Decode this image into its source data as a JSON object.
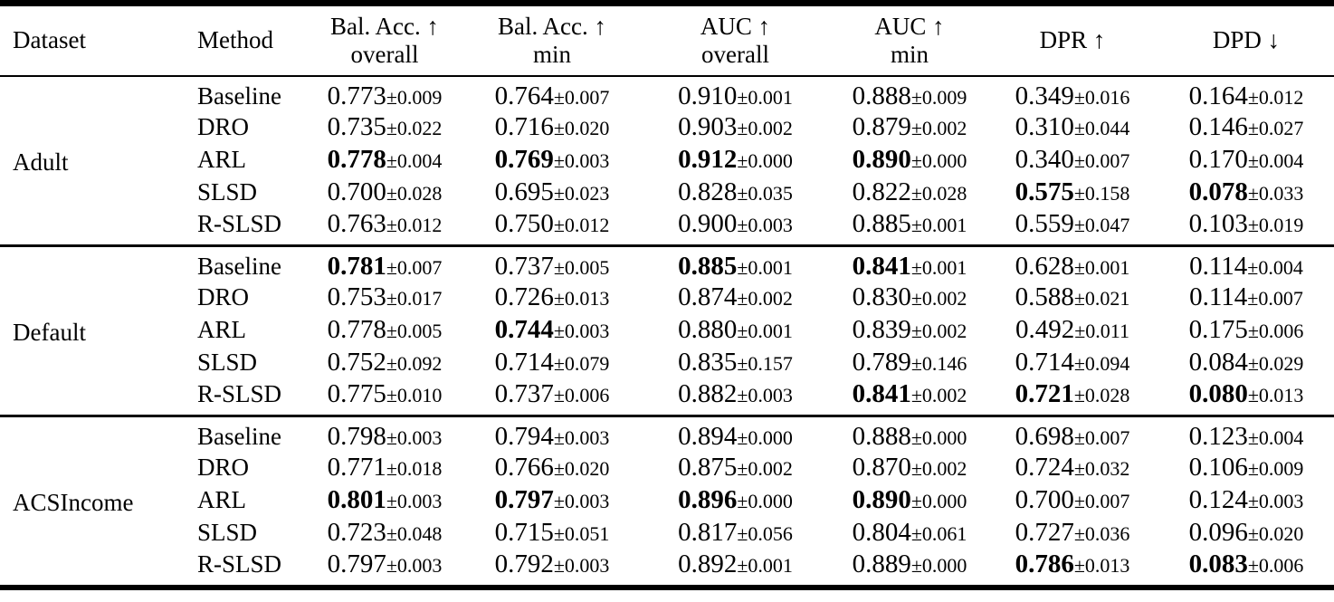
{
  "colors": {
    "text": "#000000",
    "background": "#ffffff",
    "rule": "#000000"
  },
  "table": {
    "headers": [
      {
        "label": "Dataset",
        "sub": null
      },
      {
        "label": "Method",
        "sub": null
      },
      {
        "label": "Bal. Acc. ↑",
        "sub": "overall"
      },
      {
        "label": "Bal. Acc. ↑",
        "sub": "min"
      },
      {
        "label": "AUC ↑",
        "sub": "overall"
      },
      {
        "label": "AUC ↑",
        "sub": "min"
      },
      {
        "label": "DPR ↑",
        "sub": null
      },
      {
        "label": "DPD ↓",
        "sub": null
      }
    ],
    "groups": [
      {
        "dataset": "Adult",
        "rows": [
          {
            "method": "Baseline",
            "cells": [
              {
                "v": "0.773",
                "pm": "±0.009",
                "bold": false
              },
              {
                "v": "0.764",
                "pm": "±0.007",
                "bold": false
              },
              {
                "v": "0.910",
                "pm": "±0.001",
                "bold": false
              },
              {
                "v": "0.888",
                "pm": "±0.009",
                "bold": false
              },
              {
                "v": "0.349",
                "pm": "±0.016",
                "bold": false
              },
              {
                "v": "0.164",
                "pm": "±0.012",
                "bold": false
              }
            ]
          },
          {
            "method": "DRO",
            "cells": [
              {
                "v": "0.735",
                "pm": "±0.022",
                "bold": false
              },
              {
                "v": "0.716",
                "pm": "±0.020",
                "bold": false
              },
              {
                "v": "0.903",
                "pm": "±0.002",
                "bold": false
              },
              {
                "v": "0.879",
                "pm": "±0.002",
                "bold": false
              },
              {
                "v": "0.310",
                "pm": "±0.044",
                "bold": false
              },
              {
                "v": "0.146",
                "pm": "±0.027",
                "bold": false
              }
            ]
          },
          {
            "method": "ARL",
            "cells": [
              {
                "v": "0.778",
                "pm": "±0.004",
                "bold": true
              },
              {
                "v": "0.769",
                "pm": "±0.003",
                "bold": true
              },
              {
                "v": "0.912",
                "pm": "±0.000",
                "bold": true
              },
              {
                "v": "0.890",
                "pm": "±0.000",
                "bold": true
              },
              {
                "v": "0.340",
                "pm": "±0.007",
                "bold": false
              },
              {
                "v": "0.170",
                "pm": "±0.004",
                "bold": false
              }
            ]
          },
          {
            "method": "SLSD",
            "cells": [
              {
                "v": "0.700",
                "pm": "±0.028",
                "bold": false
              },
              {
                "v": "0.695",
                "pm": "±0.023",
                "bold": false
              },
              {
                "v": "0.828",
                "pm": "±0.035",
                "bold": false
              },
              {
                "v": "0.822",
                "pm": "±0.028",
                "bold": false
              },
              {
                "v": "0.575",
                "pm": "±0.158",
                "bold": true
              },
              {
                "v": "0.078",
                "pm": "±0.033",
                "bold": true
              }
            ]
          },
          {
            "method": "R-SLSD",
            "cells": [
              {
                "v": "0.763",
                "pm": "±0.012",
                "bold": false
              },
              {
                "v": "0.750",
                "pm": "±0.012",
                "bold": false
              },
              {
                "v": "0.900",
                "pm": "±0.003",
                "bold": false
              },
              {
                "v": "0.885",
                "pm": "±0.001",
                "bold": false
              },
              {
                "v": "0.559",
                "pm": "±0.047",
                "bold": false
              },
              {
                "v": "0.103",
                "pm": "±0.019",
                "bold": false
              }
            ]
          }
        ]
      },
      {
        "dataset": "Default",
        "rows": [
          {
            "method": "Baseline",
            "cells": [
              {
                "v": "0.781",
                "pm": "±0.007",
                "bold": true
              },
              {
                "v": "0.737",
                "pm": "±0.005",
                "bold": false
              },
              {
                "v": "0.885",
                "pm": "±0.001",
                "bold": true
              },
              {
                "v": "0.841",
                "pm": "±0.001",
                "bold": true
              },
              {
                "v": "0.628",
                "pm": "±0.001",
                "bold": false
              },
              {
                "v": "0.114",
                "pm": "±0.004",
                "bold": false
              }
            ]
          },
          {
            "method": "DRO",
            "cells": [
              {
                "v": "0.753",
                "pm": "±0.017",
                "bold": false
              },
              {
                "v": "0.726",
                "pm": "±0.013",
                "bold": false
              },
              {
                "v": "0.874",
                "pm": "±0.002",
                "bold": false
              },
              {
                "v": "0.830",
                "pm": "±0.002",
                "bold": false
              },
              {
                "v": "0.588",
                "pm": "±0.021",
                "bold": false
              },
              {
                "v": "0.114",
                "pm": "±0.007",
                "bold": false
              }
            ]
          },
          {
            "method": "ARL",
            "cells": [
              {
                "v": "0.778",
                "pm": "±0.005",
                "bold": false
              },
              {
                "v": "0.744",
                "pm": "±0.003",
                "bold": true
              },
              {
                "v": "0.880",
                "pm": "±0.001",
                "bold": false
              },
              {
                "v": "0.839",
                "pm": "±0.002",
                "bold": false
              },
              {
                "v": "0.492",
                "pm": "±0.011",
                "bold": false
              },
              {
                "v": "0.175",
                "pm": "±0.006",
                "bold": false
              }
            ]
          },
          {
            "method": "SLSD",
            "cells": [
              {
                "v": "0.752",
                "pm": "±0.092",
                "bold": false
              },
              {
                "v": "0.714",
                "pm": "±0.079",
                "bold": false
              },
              {
                "v": "0.835",
                "pm": "±0.157",
                "bold": false
              },
              {
                "v": "0.789",
                "pm": "±0.146",
                "bold": false
              },
              {
                "v": "0.714",
                "pm": "±0.094",
                "bold": false
              },
              {
                "v": "0.084",
                "pm": "±0.029",
                "bold": false
              }
            ]
          },
          {
            "method": "R-SLSD",
            "cells": [
              {
                "v": "0.775",
                "pm": "±0.010",
                "bold": false
              },
              {
                "v": "0.737",
                "pm": "±0.006",
                "bold": false
              },
              {
                "v": "0.882",
                "pm": "±0.003",
                "bold": false
              },
              {
                "v": "0.841",
                "pm": "±0.002",
                "bold": true
              },
              {
                "v": "0.721",
                "pm": "±0.028",
                "bold": true
              },
              {
                "v": "0.080",
                "pm": "±0.013",
                "bold": true
              }
            ]
          }
        ]
      },
      {
        "dataset": "ACSIncome",
        "rows": [
          {
            "method": "Baseline",
            "cells": [
              {
                "v": "0.798",
                "pm": "±0.003",
                "bold": false
              },
              {
                "v": "0.794",
                "pm": "±0.003",
                "bold": false
              },
              {
                "v": "0.894",
                "pm": "±0.000",
                "bold": false
              },
              {
                "v": "0.888",
                "pm": "±0.000",
                "bold": false
              },
              {
                "v": "0.698",
                "pm": "±0.007",
                "bold": false
              },
              {
                "v": "0.123",
                "pm": "±0.004",
                "bold": false
              }
            ]
          },
          {
            "method": "DRO",
            "cells": [
              {
                "v": "0.771",
                "pm": "±0.018",
                "bold": false
              },
              {
                "v": "0.766",
                "pm": "±0.020",
                "bold": false
              },
              {
                "v": "0.875",
                "pm": "±0.002",
                "bold": false
              },
              {
                "v": "0.870",
                "pm": "±0.002",
                "bold": false
              },
              {
                "v": "0.724",
                "pm": "±0.032",
                "bold": false
              },
              {
                "v": "0.106",
                "pm": "±0.009",
                "bold": false
              }
            ]
          },
          {
            "method": "ARL",
            "cells": [
              {
                "v": "0.801",
                "pm": "±0.003",
                "bold": true
              },
              {
                "v": "0.797",
                "pm": "±0.003",
                "bold": true
              },
              {
                "v": "0.896",
                "pm": "±0.000",
                "bold": true
              },
              {
                "v": "0.890",
                "pm": "±0.000",
                "bold": true
              },
              {
                "v": "0.700",
                "pm": "±0.007",
                "bold": false
              },
              {
                "v": "0.124",
                "pm": "±0.003",
                "bold": false
              }
            ]
          },
          {
            "method": "SLSD",
            "cells": [
              {
                "v": "0.723",
                "pm": "±0.048",
                "bold": false
              },
              {
                "v": "0.715",
                "pm": "±0.051",
                "bold": false
              },
              {
                "v": "0.817",
                "pm": "±0.056",
                "bold": false
              },
              {
                "v": "0.804",
                "pm": "±0.061",
                "bold": false
              },
              {
                "v": "0.727",
                "pm": "±0.036",
                "bold": false
              },
              {
                "v": "0.096",
                "pm": "±0.020",
                "bold": false
              }
            ]
          },
          {
            "method": "R-SLSD",
            "cells": [
              {
                "v": "0.797",
                "pm": "±0.003",
                "bold": false
              },
              {
                "v": "0.792",
                "pm": "±0.003",
                "bold": false
              },
              {
                "v": "0.892",
                "pm": "±0.001",
                "bold": false
              },
              {
                "v": "0.889",
                "pm": "±0.000",
                "bold": false
              },
              {
                "v": "0.786",
                "pm": "±0.013",
                "bold": true
              },
              {
                "v": "0.083",
                "pm": "±0.006",
                "bold": true
              }
            ]
          }
        ]
      }
    ]
  }
}
